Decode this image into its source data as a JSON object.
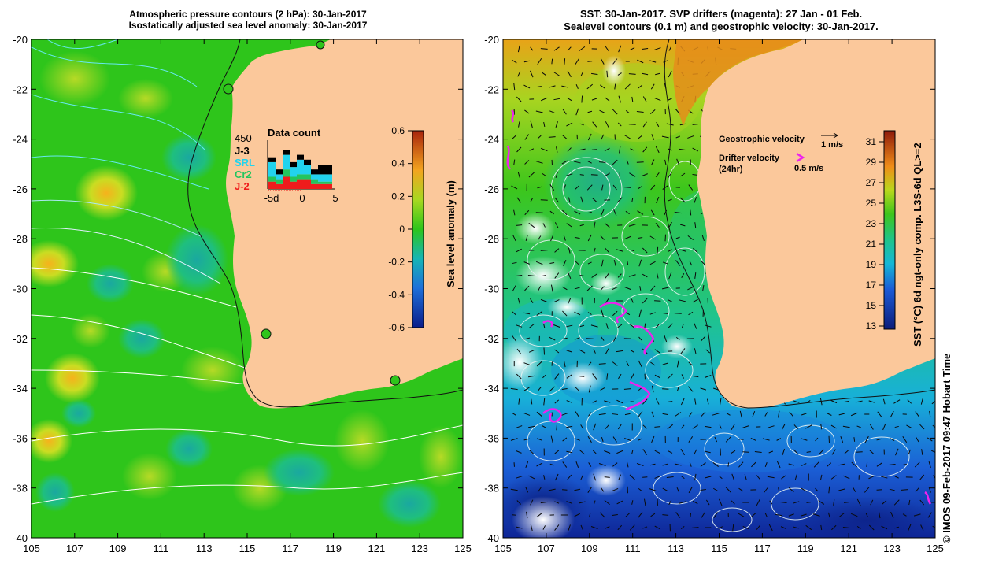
{
  "left": {
    "title_line1": "Atmospheric pressure contours (2 hPa): 30-Jan-2017",
    "title_line2": "Isostatically adjusted sea level anomaly: 30-Jan-2017",
    "colorbar_label": "Sea level anomaly (m)",
    "colorbar_ticks": [
      "0.6",
      "0.4",
      "0.2",
      "0",
      "-0.2",
      "-0.4",
      "-0.6"
    ],
    "data_count": {
      "title": "Data count",
      "scale_value": "450",
      "series": [
        "J-3",
        "SRL",
        "Cr2",
        "J-2"
      ],
      "series_colors": [
        "#000000",
        "#22d3ee",
        "#22c55e",
        "#ef1c1c"
      ],
      "x_ticks": [
        "-5d",
        "0",
        "5"
      ],
      "bars": [
        {
          "J-3": 0.1,
          "SRL": 0.3,
          "Cr2": 0.1,
          "J-2": 0.15
        },
        {
          "J-3": 0.1,
          "SRL": 0.1,
          "Cr2": 0.1,
          "J-2": 0.1
        },
        {
          "J-3": 0.1,
          "SRL": 0.3,
          "Cr2": 0.15,
          "J-2": 0.25
        },
        {
          "J-3": 0.1,
          "SRL": 0.2,
          "Cr2": 0.1,
          "J-2": 0.15
        },
        {
          "J-3": 0.1,
          "SRL": 0.3,
          "Cr2": 0.1,
          "J-2": 0.2
        },
        {
          "J-3": 0.1,
          "SRL": 0.2,
          "Cr2": 0.1,
          "J-2": 0.2
        },
        {
          "J-3": 0.1,
          "SRL": 0.1,
          "Cr2": 0.1,
          "J-2": 0.1
        },
        {
          "J-3": 0.2,
          "SRL": 0.15,
          "Cr2": 0.05,
          "J-2": 0.1
        },
        {
          "J-3": 0.2,
          "SRL": 0.15,
          "Cr2": 0.05,
          "J-2": 0.1
        }
      ]
    }
  },
  "right": {
    "title_line1": "SST: 30-Jan-2017. SVP drifters (magenta): 27 Jan - 01 Feb.",
    "title_line2": "Sealevel contours (0.1 m) and geostrophic velocity: 30-Jan-2017.",
    "colorbar_label": "SST (°C) 6d ngt-only comp. L3S-6d QL>=2",
    "colorbar_ticks": [
      "31",
      "29",
      "27",
      "25",
      "23",
      "21",
      "19",
      "17",
      "15",
      "13"
    ],
    "legend_geo": "Geostrophic velocity",
    "legend_geo_scale": "1 m/s",
    "legend_drifter_line1": "Drifter velocity",
    "legend_drifter_line2": "(24hr)",
    "legend_drifter_scale": "0.5 m/s",
    "credit": "© IMOS 09-Feb-2017 09:47 Hobart Time"
  },
  "axes": {
    "lon_ticks": [
      "105",
      "107",
      "109",
      "111",
      "113",
      "115",
      "117",
      "119",
      "121",
      "123",
      "125"
    ],
    "lat_ticks": [
      "-20",
      "-22",
      "-24",
      "-26",
      "-28",
      "-30",
      "-32",
      "-34",
      "-36",
      "-38",
      "-40"
    ]
  },
  "colors": {
    "land": "#fbc89b",
    "ocean_green": "#2ec51b",
    "contour_white": "#ffffff",
    "drifter": "#ee22ee"
  }
}
